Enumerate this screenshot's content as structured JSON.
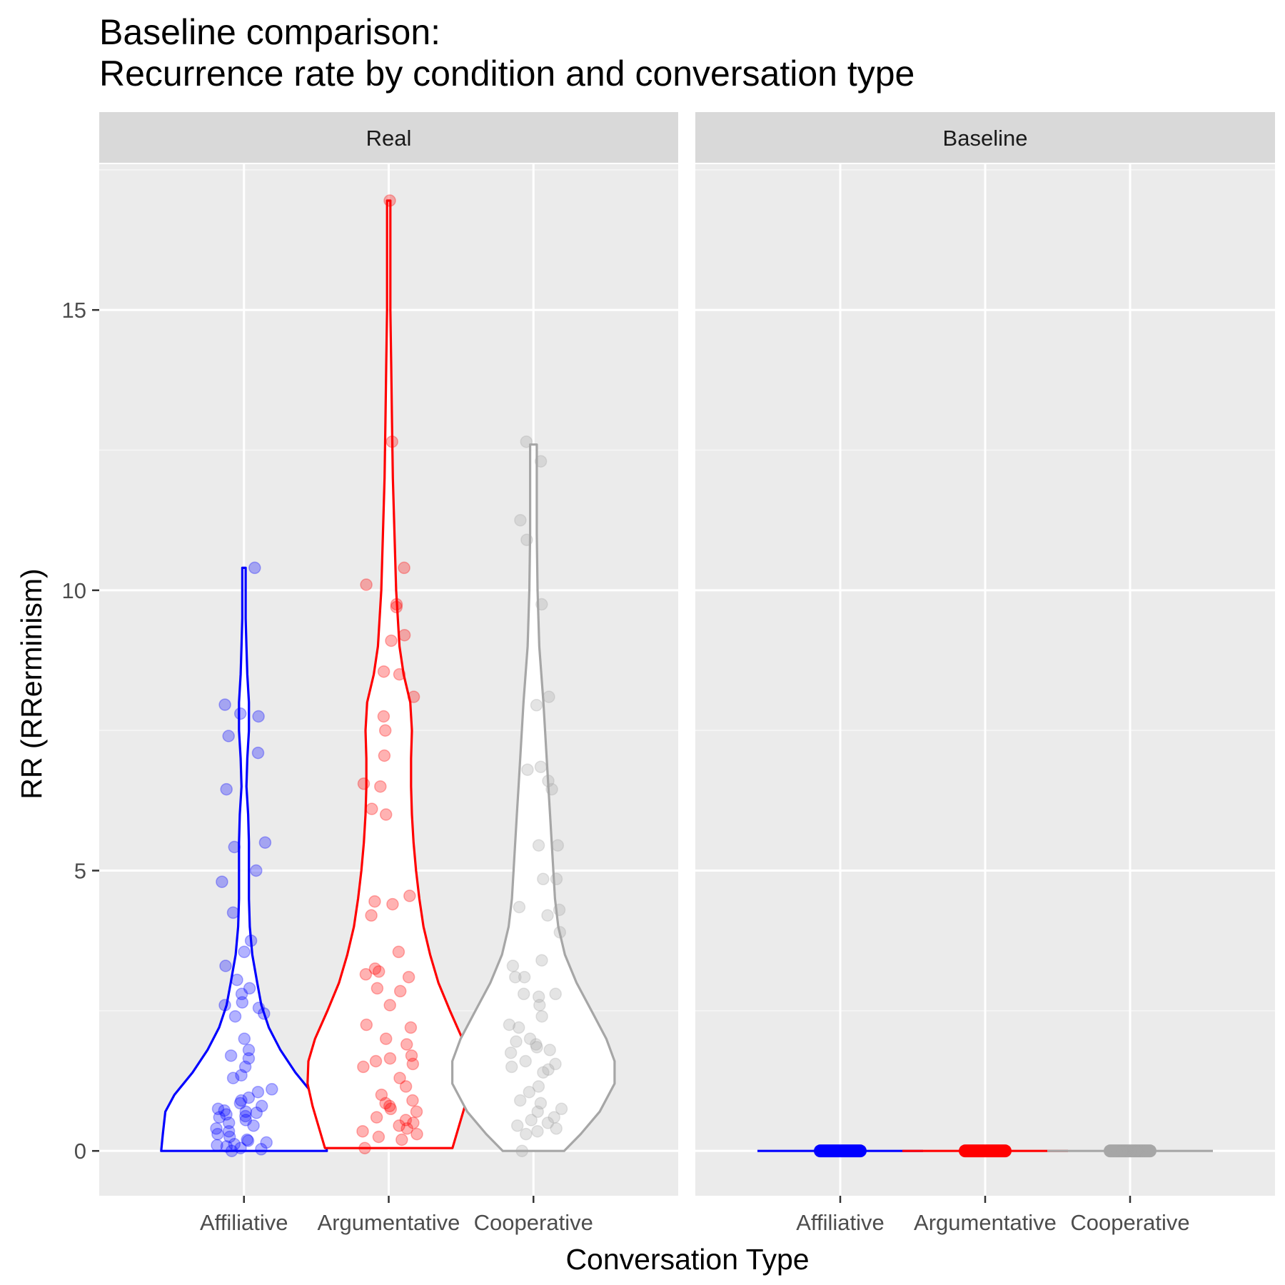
{
  "chart_data": {
    "type": "violin",
    "title_lines": [
      "Baseline comparison:",
      "Recurrence rate by condition and conversation type"
    ],
    "xlabel": "Conversation Type",
    "ylabel": "RR (RRerminism)",
    "ylim": [
      -0.8,
      17.6
    ],
    "yticks": [
      0,
      5,
      10,
      15
    ],
    "categories": [
      "Affiliative",
      "Argumentative",
      "Cooperative"
    ],
    "grid": true,
    "legend": "none",
    "colors": {
      "Affiliative": "#0000ff",
      "Argumentative": "#ff0000",
      "Cooperative": "#a6a6a6"
    },
    "panels": [
      {
        "name": "Real",
        "groups": [
          {
            "category": "Affiliative",
            "range": [
              0,
              10.4
            ],
            "density": [
              [
                0.0,
                1.0
              ],
              [
                0.3,
                0.98
              ],
              [
                0.7,
                0.95
              ],
              [
                1.0,
                0.84
              ],
              [
                1.4,
                0.62
              ],
              [
                1.8,
                0.44
              ],
              [
                2.2,
                0.3
              ],
              [
                2.6,
                0.21
              ],
              [
                3.0,
                0.16
              ],
              [
                3.5,
                0.1
              ],
              [
                4.0,
                0.07
              ],
              [
                4.5,
                0.06
              ],
              [
                5.0,
                0.06
              ],
              [
                5.5,
                0.06
              ],
              [
                6.0,
                0.05
              ],
              [
                6.5,
                0.03
              ],
              [
                7.0,
                0.04
              ],
              [
                7.5,
                0.06
              ],
              [
                8.0,
                0.06
              ],
              [
                8.5,
                0.04
              ],
              [
                9.0,
                0.03
              ],
              [
                9.5,
                0.02
              ],
              [
                10.0,
                0.02
              ],
              [
                10.4,
                0.02
              ]
            ],
            "points": [
              10.4,
              7.96,
              7.8,
              7.75,
              7.4,
              7.1,
              6.45,
              5.5,
              5.42,
              5.0,
              4.8,
              4.25,
              3.75,
              3.55,
              3.3,
              3.05,
              2.9,
              2.8,
              2.65,
              2.6,
              2.55,
              2.45,
              2.4,
              2.0,
              1.8,
              1.7,
              1.65,
              1.5,
              1.35,
              1.3,
              1.1,
              1.05,
              0.95,
              0.9,
              0.85,
              0.8,
              0.75,
              0.72,
              0.7,
              0.68,
              0.65,
              0.62,
              0.6,
              0.55,
              0.5,
              0.45,
              0.4,
              0.35,
              0.3,
              0.25,
              0.2,
              0.18,
              0.15,
              0.12,
              0.1,
              0.08,
              0.05,
              0.03,
              0.0
            ]
          },
          {
            "category": "Argumentative",
            "range": [
              0.05,
              16.95
            ],
            "density": [
              [
                0.05,
                0.77
              ],
              [
                0.4,
                0.84
              ],
              [
                0.8,
                0.92
              ],
              [
                1.2,
                0.98
              ],
              [
                1.6,
                0.97
              ],
              [
                2.0,
                0.89
              ],
              [
                2.5,
                0.74
              ],
              [
                3.0,
                0.6
              ],
              [
                3.5,
                0.5
              ],
              [
                4.0,
                0.42
              ],
              [
                4.5,
                0.37
              ],
              [
                5.0,
                0.33
              ],
              [
                5.5,
                0.3
              ],
              [
                6.0,
                0.28
              ],
              [
                6.5,
                0.27
              ],
              [
                7.0,
                0.27
              ],
              [
                7.5,
                0.28
              ],
              [
                8.0,
                0.26
              ],
              [
                8.5,
                0.18
              ],
              [
                9.0,
                0.13
              ],
              [
                10.0,
                0.09
              ],
              [
                11.0,
                0.07
              ],
              [
                12.0,
                0.05
              ],
              [
                13.0,
                0.04
              ],
              [
                14.0,
                0.03
              ],
              [
                15.0,
                0.02
              ],
              [
                16.0,
                0.02
              ],
              [
                16.95,
                0.02
              ]
            ],
            "points": [
              16.95,
              12.65,
              10.4,
              10.1,
              9.75,
              9.7,
              9.2,
              9.1,
              8.55,
              8.5,
              8.1,
              7.75,
              7.5,
              7.05,
              6.55,
              6.5,
              6.1,
              6.0,
              4.55,
              4.45,
              4.4,
              4.2,
              3.55,
              3.25,
              3.2,
              3.15,
              3.1,
              2.9,
              2.85,
              2.6,
              2.25,
              2.2,
              2.0,
              1.9,
              1.7,
              1.65,
              1.6,
              1.55,
              1.5,
              1.3,
              1.15,
              1.0,
              0.9,
              0.85,
              0.8,
              0.75,
              0.7,
              0.6,
              0.55,
              0.5,
              0.45,
              0.4,
              0.35,
              0.3,
              0.25,
              0.2,
              0.05
            ]
          },
          {
            "category": "Cooperative",
            "range": [
              0,
              12.6
            ],
            "density": [
              [
                0.0,
                0.37
              ],
              [
                0.3,
                0.57
              ],
              [
                0.7,
                0.8
              ],
              [
                1.2,
                0.98
              ],
              [
                1.6,
                0.98
              ],
              [
                2.0,
                0.88
              ],
              [
                2.5,
                0.7
              ],
              [
                3.0,
                0.52
              ],
              [
                3.5,
                0.38
              ],
              [
                4.0,
                0.3
              ],
              [
                4.5,
                0.26
              ],
              [
                5.0,
                0.24
              ],
              [
                5.5,
                0.22
              ],
              [
                6.0,
                0.2
              ],
              [
                6.5,
                0.18
              ],
              [
                7.0,
                0.16
              ],
              [
                7.5,
                0.14
              ],
              [
                8.0,
                0.12
              ],
              [
                9.0,
                0.07
              ],
              [
                10.0,
                0.05
              ],
              [
                11.0,
                0.04
              ],
              [
                12.0,
                0.04
              ],
              [
                12.6,
                0.04
              ]
            ],
            "points": [
              12.65,
              12.3,
              11.25,
              10.9,
              9.75,
              8.1,
              7.95,
              6.85,
              6.8,
              6.6,
              6.45,
              5.45,
              5.45,
              4.85,
              4.85,
              4.35,
              4.3,
              4.2,
              3.9,
              3.4,
              3.3,
              3.1,
              3.1,
              2.8,
              2.8,
              2.75,
              2.6,
              2.4,
              2.25,
              2.2,
              2.0,
              1.95,
              1.9,
              1.85,
              1.8,
              1.75,
              1.6,
              1.55,
              1.5,
              1.45,
              1.4,
              1.15,
              1.05,
              0.9,
              0.85,
              0.75,
              0.7,
              0.6,
              0.55,
              0.5,
              0.45,
              0.4,
              0.35,
              0.3,
              0.0
            ]
          }
        ]
      },
      {
        "name": "Baseline",
        "groups": [
          {
            "category": "Affiliative",
            "range": [
              0,
              0.02
            ],
            "density": [],
            "points": [
              0,
              0,
              0,
              0,
              0,
              0,
              0,
              0,
              0,
              0,
              0,
              0
            ]
          },
          {
            "category": "Argumentative",
            "range": [
              0,
              0.02
            ],
            "density": [],
            "points": [
              0,
              0,
              0,
              0,
              0,
              0,
              0,
              0,
              0,
              0,
              0,
              0
            ]
          },
          {
            "category": "Cooperative",
            "range": [
              0,
              0.02
            ],
            "density": [],
            "points": [
              0,
              0,
              0,
              0,
              0,
              0,
              0,
              0,
              0,
              0,
              0,
              0
            ]
          }
        ]
      }
    ]
  }
}
